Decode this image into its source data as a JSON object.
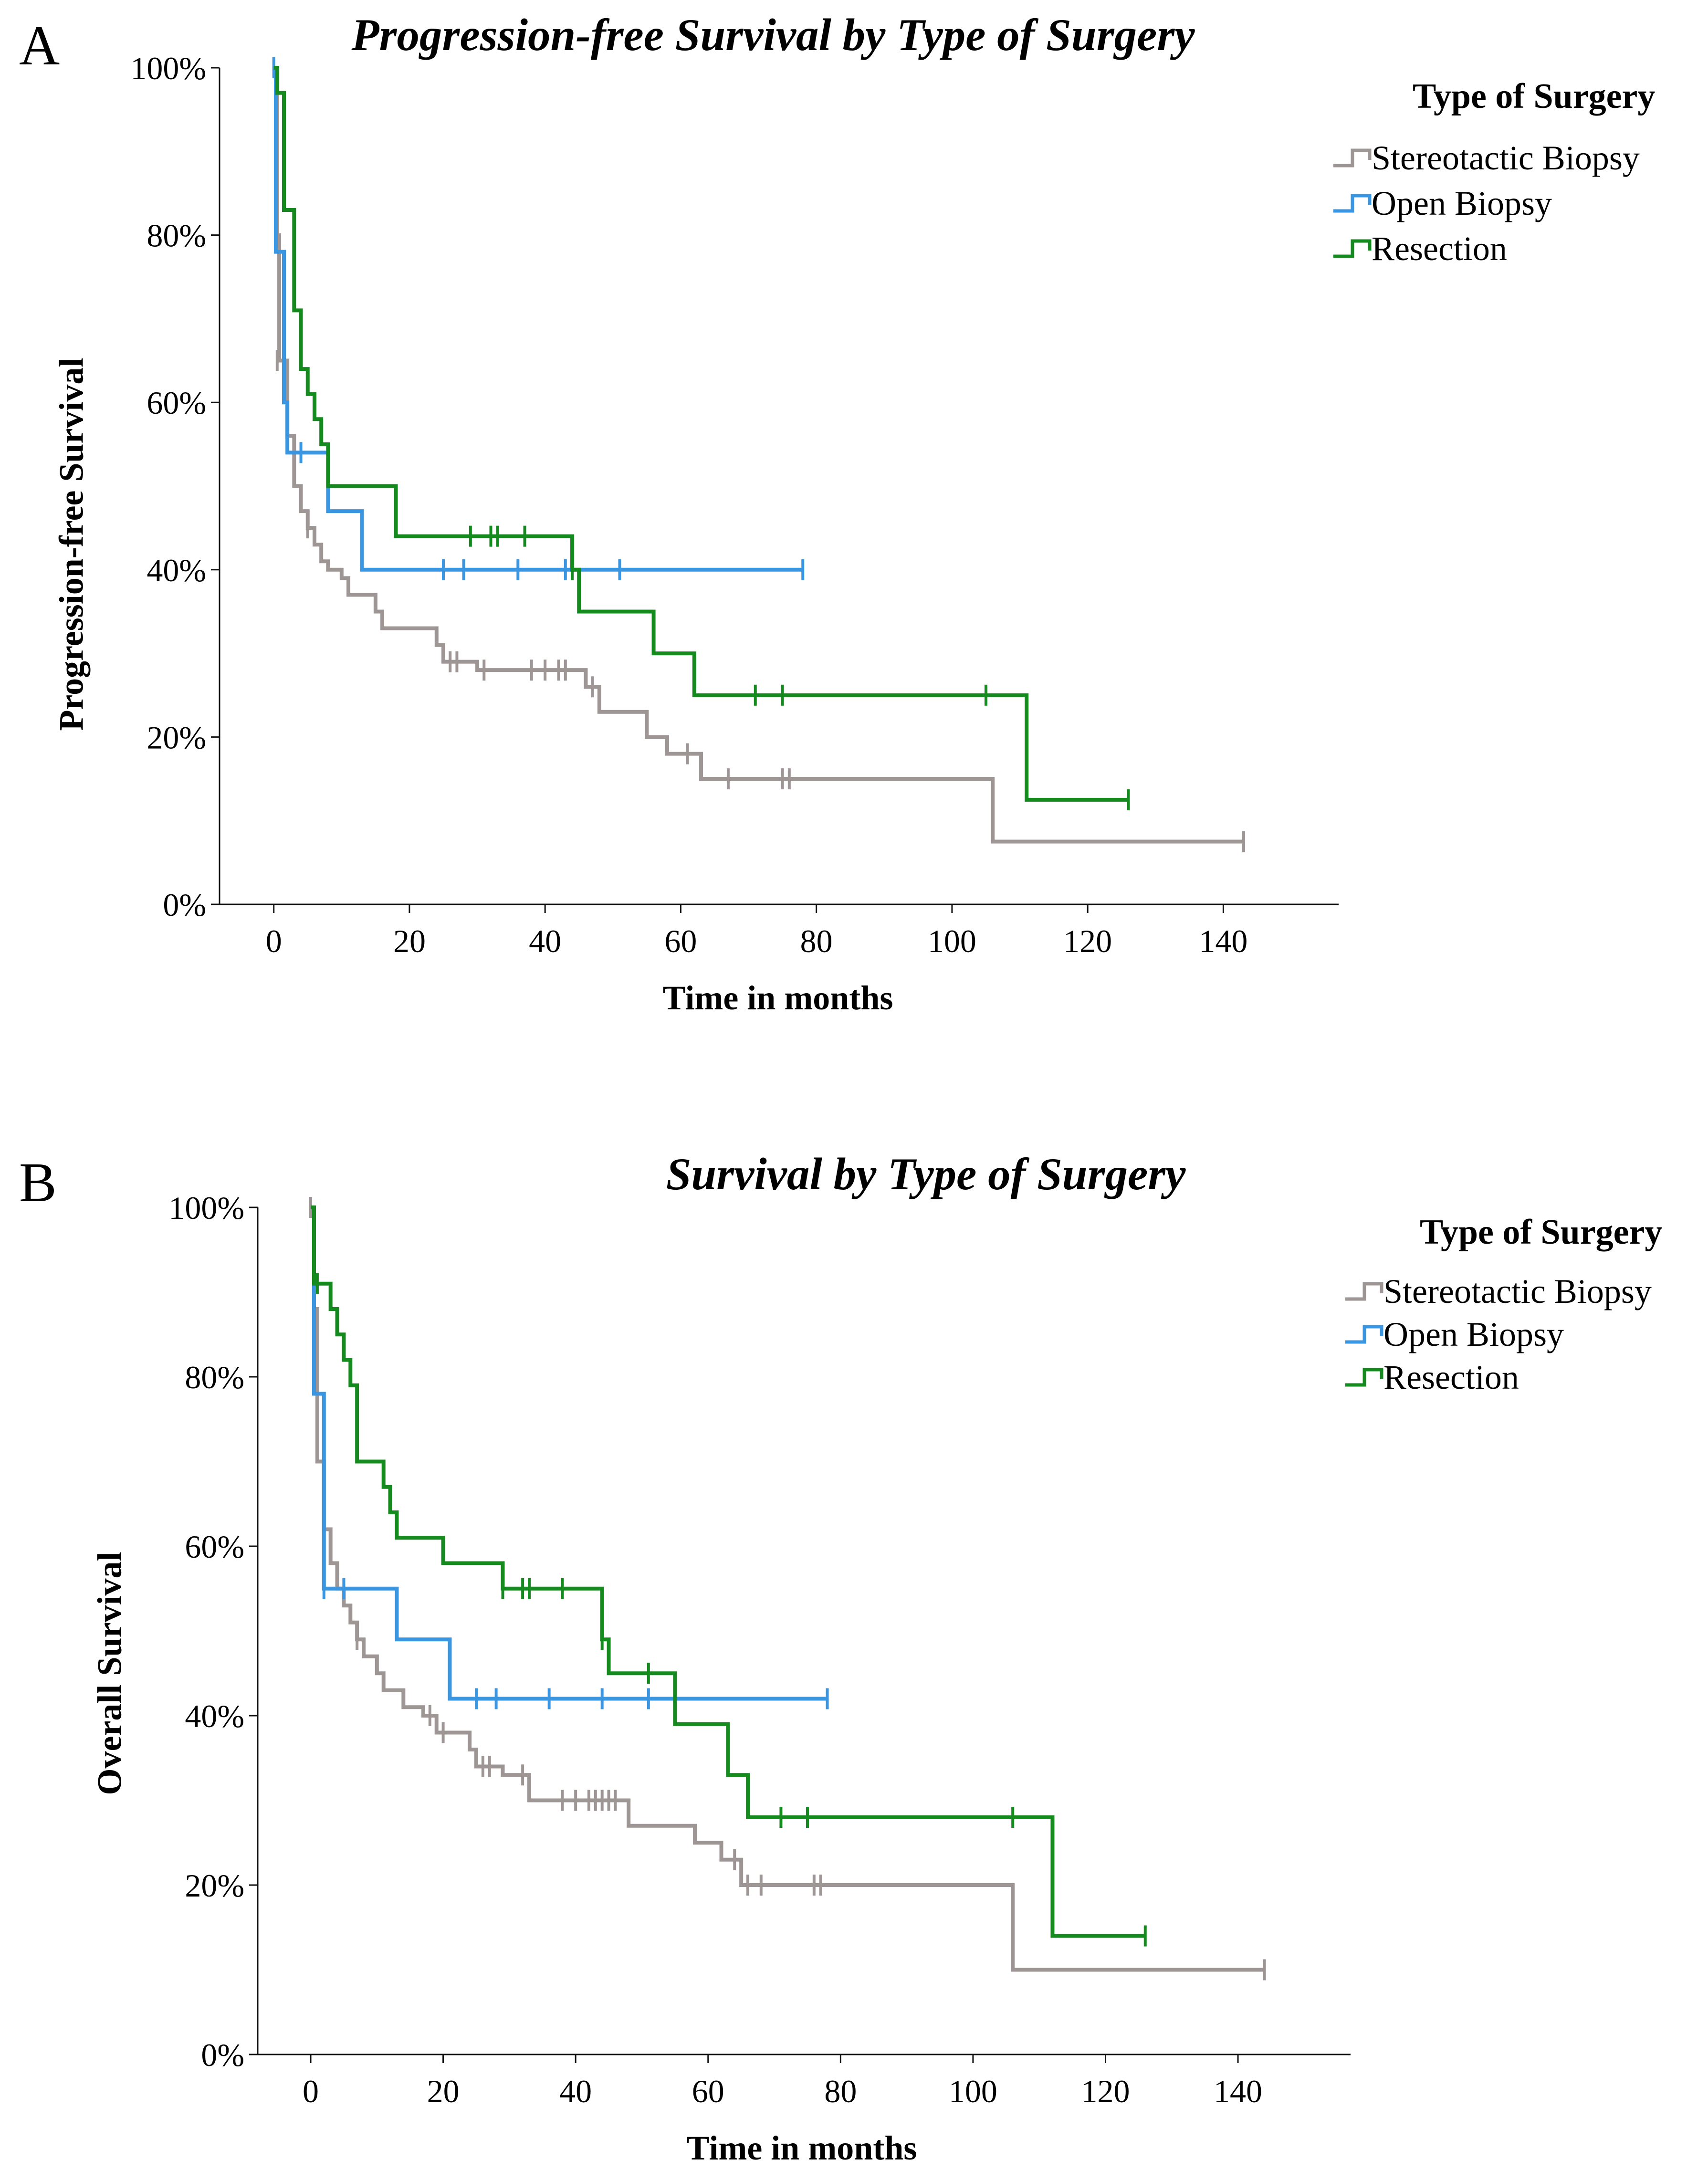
{
  "panels": {
    "a": {
      "label": "A",
      "legend_title": "Type of Surgery",
      "legend_items": [
        "Stereotactic Biopsy",
        "Open Biopsy",
        "Resection"
      ],
      "ylabel": "Progression-free Survival",
      "xlabel": "Time in months",
      "title": "Progression-free Survival by Type of Surgery"
    },
    "b": {
      "label": "B",
      "legend_title": "Type of Surgery",
      "legend_items": [
        "Stereotactic Biopsy",
        "Open Biopsy",
        "Resection"
      ],
      "ylabel": "Overall Survival",
      "xlabel": "Time in months",
      "title": "Survival by Type of Surgery"
    }
  },
  "colors": {
    "Stereotactic Biopsy": "#9e9595",
    "Open Biopsy": "#3a96e0",
    "Resection": "#158a1e"
  },
  "chart_data": [
    {
      "type": "line",
      "subtype": "kaplan-meier step",
      "title": "Progression-free Survival by Type of Surgery",
      "xlabel": "Time in months",
      "ylabel": "Progression-free Survival",
      "xlim": [
        -8,
        157
      ],
      "ylim": [
        0,
        100
      ],
      "x_ticks": [
        0,
        20,
        40,
        60,
        80,
        100,
        120,
        140
      ],
      "x_tick_labels": [
        "0",
        "20",
        "40",
        "60",
        "80",
        "100",
        "120",
        "140"
      ],
      "y_ticks": [
        0,
        20,
        40,
        60,
        80,
        100
      ],
      "y_tick_labels": [
        "0%",
        "20%",
        "40%",
        "60%",
        "80%",
        "100%"
      ],
      "legend_title": "Type of Surgery",
      "legend_position": "top-right",
      "series": [
        {
          "name": "Stereotactic Biopsy",
          "steps": [
            [
              0,
              100
            ],
            [
              0.5,
              80
            ],
            [
              0.8,
              65
            ],
            [
              2,
              56
            ],
            [
              3,
              50
            ],
            [
              4,
              47
            ],
            [
              5,
              45
            ],
            [
              6,
              43
            ],
            [
              7,
              41
            ],
            [
              8,
              40
            ],
            [
              10,
              39
            ],
            [
              11,
              37
            ],
            [
              15,
              35
            ],
            [
              16,
              33
            ],
            [
              24,
              31
            ],
            [
              25,
              29
            ],
            [
              30,
              28
            ],
            [
              46,
              26
            ],
            [
              48,
              23
            ],
            [
              55,
              20
            ],
            [
              58,
              18
            ],
            [
              63,
              15
            ],
            [
              106,
              7.5
            ]
          ],
          "end": 143,
          "censored": [
            [
              0.5,
              65
            ],
            [
              5,
              45
            ],
            [
              26,
              29
            ],
            [
              27,
              29
            ],
            [
              31,
              28
            ],
            [
              38,
              28
            ],
            [
              40,
              28
            ],
            [
              42,
              28
            ],
            [
              43,
              28
            ],
            [
              47,
              26
            ],
            [
              61,
              18
            ],
            [
              67,
              15
            ],
            [
              75,
              15
            ],
            [
              76,
              15
            ],
            [
              143,
              7.5
            ]
          ]
        },
        {
          "name": "Open Biopsy",
          "steps": [
            [
              0,
              100
            ],
            [
              0.3,
              78
            ],
            [
              1.5,
              60
            ],
            [
              2,
              54
            ],
            [
              8,
              47
            ],
            [
              13,
              40
            ]
          ],
          "end": 78,
          "censored": [
            [
              0,
              100
            ],
            [
              4,
              54
            ],
            [
              25,
              40
            ],
            [
              28,
              40
            ],
            [
              36,
              40
            ],
            [
              43,
              40
            ],
            [
              51,
              40
            ],
            [
              78,
              40
            ]
          ]
        },
        {
          "name": "Resection",
          "steps": [
            [
              0,
              100
            ],
            [
              0.5,
              97
            ],
            [
              1.5,
              83
            ],
            [
              3,
              71
            ],
            [
              4,
              64
            ],
            [
              5,
              61
            ],
            [
              6,
              58
            ],
            [
              7,
              55
            ],
            [
              8,
              50
            ],
            [
              18,
              44
            ],
            [
              44,
              40
            ],
            [
              45,
              35
            ],
            [
              56,
              30
            ],
            [
              62,
              25
            ],
            [
              111,
              12.5
            ]
          ],
          "end": 126,
          "censored": [
            [
              29,
              44
            ],
            [
              32,
              44
            ],
            [
              33,
              44
            ],
            [
              37,
              44
            ],
            [
              44,
              40
            ],
            [
              71,
              25
            ],
            [
              75,
              25
            ],
            [
              105,
              25
            ],
            [
              126,
              12.5
            ]
          ]
        }
      ]
    },
    {
      "type": "line",
      "subtype": "kaplan-meier step",
      "title": "Survival by Type of Surgery",
      "xlabel": "Time in months",
      "ylabel": "Overall Survival",
      "xlim": [
        -8,
        157
      ],
      "ylim": [
        0,
        100
      ],
      "x_ticks": [
        0,
        20,
        40,
        60,
        80,
        100,
        120,
        140
      ],
      "x_tick_labels": [
        "0",
        "20",
        "40",
        "60",
        "80",
        "100",
        "120",
        "140"
      ],
      "y_ticks": [
        0,
        20,
        40,
        60,
        80,
        100
      ],
      "y_tick_labels": [
        "0%",
        "20%",
        "40%",
        "60%",
        "80%",
        "100%"
      ],
      "legend_title": "Type of Surgery",
      "legend_position": "top-right",
      "series": [
        {
          "name": "Stereotactic Biopsy",
          "steps": [
            [
              0,
              100
            ],
            [
              0.5,
              88
            ],
            [
              1,
              70
            ],
            [
              2,
              62
            ],
            [
              3,
              58
            ],
            [
              4,
              55
            ],
            [
              5,
              53
            ],
            [
              6,
              51
            ],
            [
              7,
              49
            ],
            [
              8,
              47
            ],
            [
              10,
              45
            ],
            [
              11,
              43
            ],
            [
              14,
              41
            ],
            [
              17,
              40
            ],
            [
              19,
              38
            ],
            [
              24,
              36
            ],
            [
              25,
              34
            ],
            [
              29,
              33
            ],
            [
              33,
              30
            ],
            [
              48,
              27
            ],
            [
              58,
              25
            ],
            [
              62,
              23
            ],
            [
              65,
              20
            ],
            [
              106,
              10
            ]
          ],
          "end": 144,
          "censored": [
            [
              0,
              100
            ],
            [
              2,
              62
            ],
            [
              5,
              55
            ],
            [
              7,
              49
            ],
            [
              18,
              40
            ],
            [
              20,
              38
            ],
            [
              26,
              34
            ],
            [
              27,
              34
            ],
            [
              32,
              33
            ],
            [
              38,
              30
            ],
            [
              40,
              30
            ],
            [
              42,
              30
            ],
            [
              43,
              30
            ],
            [
              44,
              30
            ],
            [
              45,
              30
            ],
            [
              46,
              30
            ],
            [
              64,
              23
            ],
            [
              66,
              20
            ],
            [
              68,
              20
            ],
            [
              76,
              20
            ],
            [
              77,
              20
            ],
            [
              144,
              10
            ]
          ]
        },
        {
          "name": "Open Biopsy",
          "steps": [
            [
              0,
              100
            ],
            [
              0.5,
              78
            ],
            [
              2,
              55
            ],
            [
              13,
              49
            ],
            [
              21,
              42
            ]
          ],
          "end": 78,
          "censored": [
            [
              2,
              55
            ],
            [
              5,
              55
            ],
            [
              25,
              42
            ],
            [
              28,
              42
            ],
            [
              36,
              42
            ],
            [
              44,
              42
            ],
            [
              51,
              42
            ],
            [
              78,
              42
            ]
          ]
        },
        {
          "name": "Resection",
          "steps": [
            [
              0,
              100
            ],
            [
              0.5,
              91
            ],
            [
              3,
              88
            ],
            [
              4,
              85
            ],
            [
              5,
              82
            ],
            [
              6,
              79
            ],
            [
              7,
              70
            ],
            [
              11,
              67
            ],
            [
              12,
              64
            ],
            [
              13,
              61
            ],
            [
              20,
              58
            ],
            [
              29,
              55
            ],
            [
              44,
              49
            ],
            [
              45,
              45
            ],
            [
              55,
              39
            ],
            [
              63,
              33
            ],
            [
              66,
              28
            ],
            [
              112,
              14
            ]
          ],
          "end": 126,
          "censored": [
            [
              1,
              91
            ],
            [
              29,
              55
            ],
            [
              32,
              55
            ],
            [
              33,
              55
            ],
            [
              38,
              55
            ],
            [
              44,
              49
            ],
            [
              51,
              45
            ],
            [
              71,
              28
            ],
            [
              75,
              28
            ],
            [
              106,
              28
            ],
            [
              126,
              14
            ]
          ]
        }
      ]
    }
  ]
}
